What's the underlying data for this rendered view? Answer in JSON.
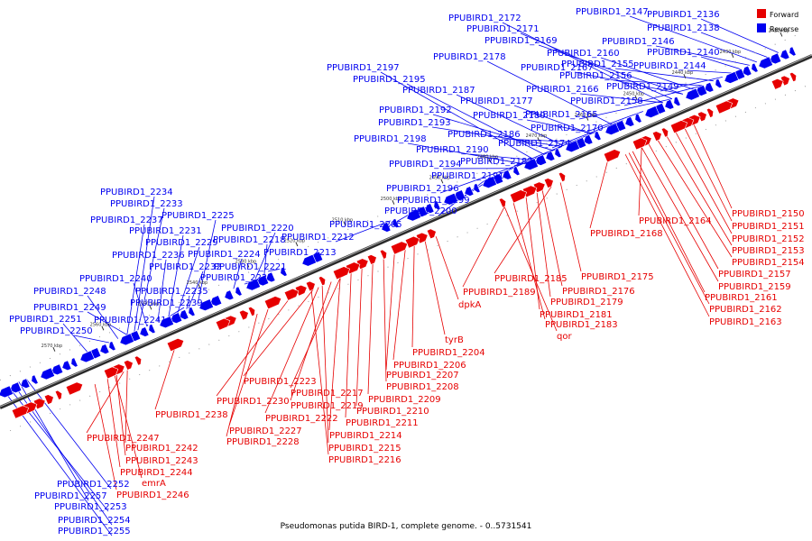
{
  "colors": {
    "forward": "#e60000",
    "reverse": "#0000f0",
    "backbone": "#555555"
  },
  "legend": {
    "forward": "Forward",
    "reverse": "Reverse"
  },
  "caption": "Pseudomonas putida BIRD-1, complete genome. - 0..5731541",
  "tick_labels": [
    "2420 kbp",
    "2430 kbp",
    "2440 kbp",
    "2450 kbp",
    "2460 kbp",
    "2470 kbp",
    "2480 kbp",
    "2490 kbp",
    "2500 kbp",
    "2510 kbp",
    "2520 kbp",
    "2530 kbp",
    "2540 kbp",
    "2550 kbp",
    "2560 kbp",
    "2570 kbp"
  ],
  "reverse_labels": [
    "PPUBIRD1_2147",
    "PPUBIRD1_2136",
    "PPUBIRD1_2172",
    "PPUBIRD1_2171",
    "PPUBIRD1_2169",
    "PPUBIRD1_2138",
    "PPUBIRD1_2146",
    "PPUBIRD1_2160",
    "PPUBIRD1_2140",
    "PPUBIRD1_2178",
    "PPUBIRD1_2155",
    "PPUBIRD1_2144",
    "PPUBIRD1_2197",
    "PPUBIRD1_2167",
    "PPUBIRD1_2156",
    "PPUBIRD1_2195",
    "PPUBIRD1_2166",
    "PPUBIRD1_2187",
    "PPUBIRD1_2149",
    "PPUBIRD1_2177",
    "PPUBIRD1_2158",
    "PPUBIRD1_2192",
    "PPUBIRD1_2180",
    "PPUBIRD1_2165",
    "PPUBIRD1_2193",
    "PPUBIRD1_2170",
    "PPUBIRD1_2186",
    "PPUBIRD1_2198",
    "PPUBIRD1_2174",
    "PPUBIRD1_2190",
    "PPUBIRD1_2182",
    "PPUBIRD1_2194",
    "PPUBIRD1_2191",
    "PPUBIRD1_2196",
    "PPUBIRD1_2234",
    "PPUBIRD1_2199",
    "PPUBIRD1_2233",
    "PPUBIRD1_2200",
    "PPUBIRD1_2225",
    "PPUBIRD1_2237",
    "PPUBIRD1_2205",
    "PPUBIRD1_2220",
    "PPUBIRD1_2231",
    "PPUBIRD1_2212",
    "PPUBIRD1_2218",
    "PPUBIRD1_2229",
    "PPUBIRD1_2213",
    "PPUBIRD1_2236",
    "PPUBIRD1_2224",
    "PPUBIRD1_2232",
    "PPUBIRD1_2221",
    "PPUBIRD1_2240",
    "PPUBIRD1_2226",
    "PPUBIRD1_2248",
    "PPUBIRD1_2235",
    "PPUBIRD1_2249",
    "PPUBIRD1_2239",
    "PPUBIRD1_2251",
    "PPUBIRD1_2241",
    "PPUBIRD1_2250",
    "PPUBIRD1_2252",
    "PPUBIRD1_2257",
    "PPUBIRD1_2253",
    "PPUBIRD1_2254",
    "PPUBIRD1_2255"
  ],
  "forward_labels": [
    "PPUBIRD1_2150",
    "PPUBIRD1_2164",
    "PPUBIRD1_2151",
    "PPUBIRD1_2168",
    "PPUBIRD1_2152",
    "PPUBIRD1_2153",
    "PPUBIRD1_2154",
    "PPUBIRD1_2157",
    "PPUBIRD1_2185",
    "PPUBIRD1_2175",
    "PPUBIRD1_2159",
    "PPUBIRD1_2189",
    "PPUBIRD1_2176",
    "PPUBIRD1_2161",
    "PPUBIRD1_2179",
    "dpkA",
    "PPUBIRD1_2162",
    "PPUBIRD1_2181",
    "PPUBIRD1_2163",
    "PPUBIRD1_2183",
    "qor",
    "tyrB",
    "PPUBIRD1_2204",
    "PPUBIRD1_2206",
    "PPUBIRD1_2207",
    "PPUBIRD1_2223",
    "PPUBIRD1_2208",
    "PPUBIRD1_2217",
    "PPUBIRD1_2230",
    "PPUBIRD1_2219",
    "PPUBIRD1_2209",
    "PPUBIRD1_2238",
    "PPUBIRD1_2210",
    "PPUBIRD1_2222",
    "PPUBIRD1_2211",
    "PPUBIRD1_2227",
    "PPUBIRD1_2214",
    "PPUBIRD1_2228",
    "PPUBIRD1_2247",
    "PPUBIRD1_2215",
    "PPUBIRD1_2242",
    "PPUBIRD1_2216",
    "PPUBIRD1_2243",
    "PPUBIRD1_2244",
    "emrA",
    "PPUBIRD1_2246"
  ]
}
